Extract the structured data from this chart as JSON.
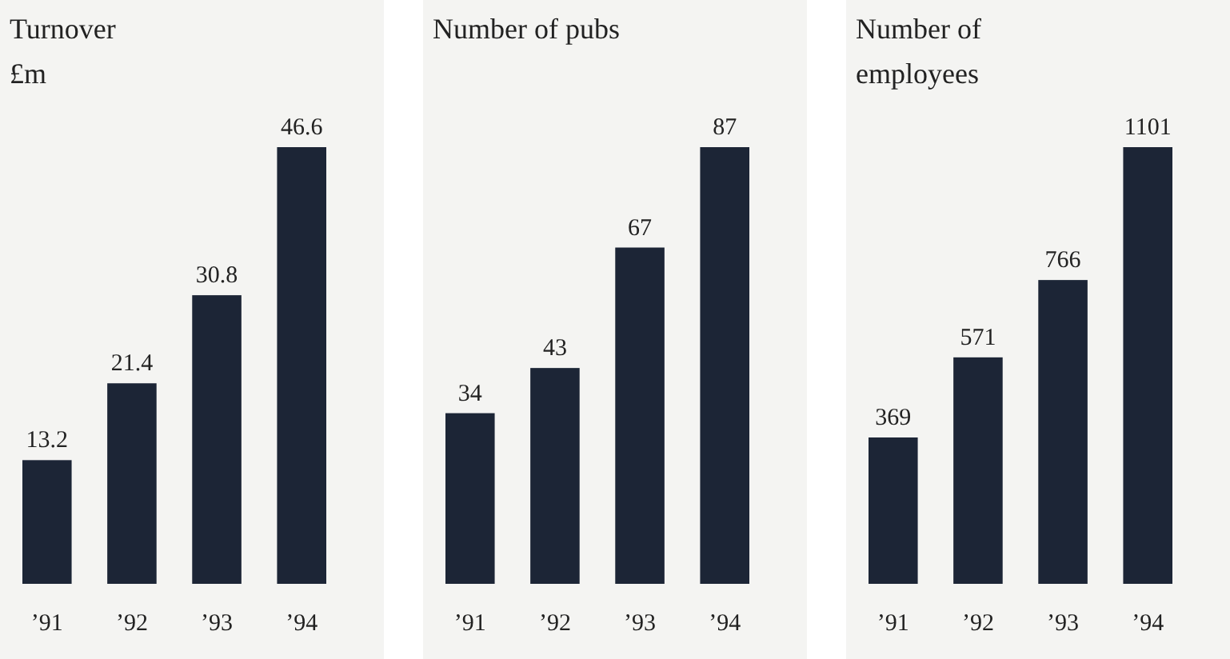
{
  "chart_data": [
    {
      "type": "bar",
      "title": "Turnover",
      "ylabel": "£m",
      "categories": [
        "’91",
        "’92",
        "’93",
        "’94"
      ],
      "values": [
        13.2,
        21.4,
        30.8,
        46.6
      ],
      "color": "#1c2536",
      "data_labels": true
    },
    {
      "type": "bar",
      "title": "Number of pubs",
      "categories": [
        "’91",
        "’92",
        "’93",
        "’94"
      ],
      "values": [
        34,
        43,
        67,
        87
      ],
      "color": "#1c2536",
      "data_labels": true
    },
    {
      "type": "bar",
      "title": "Number of employees",
      "categories": [
        "’91",
        "’92",
        "’93",
        "’94"
      ],
      "values": [
        369,
        571,
        766,
        1101
      ],
      "color": "#1c2536",
      "data_labels": true
    }
  ]
}
